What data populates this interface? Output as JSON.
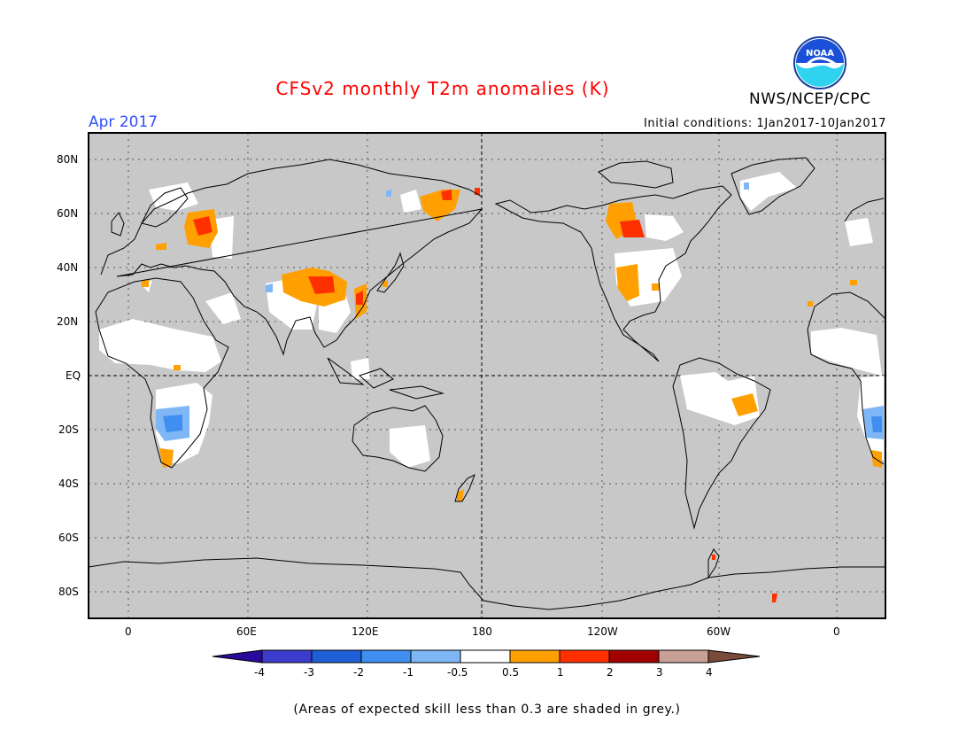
{
  "header": {
    "title": "CFSv2 monthly T2m anomalies (K)",
    "agency": "NWS/NCEP/CPC",
    "logo_text": "NOAA",
    "month": "Apr 2017",
    "initial_conditions": "Initial conditions: 1Jan2017-10Jan2017"
  },
  "map": {
    "lat_labels": [
      "80N",
      "60N",
      "40N",
      "20N",
      "EQ",
      "20S",
      "40S",
      "60S",
      "80S"
    ],
    "lon_labels": [
      "0",
      "60E",
      "120E",
      "180",
      "120W",
      "60W",
      "0"
    ],
    "colors": {
      "land_skill": "#c8c8c8",
      "background": "#c8c8c8",
      "coast": "#000000"
    }
  },
  "colorbar": {
    "labels": [
      "-4",
      "-3",
      "-2",
      "-1",
      "-0.5",
      "0.5",
      "1",
      "2",
      "3",
      "4"
    ],
    "colors": [
      "#2a0a9c",
      "#3c3ccc",
      "#1f5fd6",
      "#3f8ef0",
      "#7fb6f5",
      "#ffffff",
      "#ffa000",
      "#ff3000",
      "#a00000",
      "#c8a096",
      "#7a4a3a"
    ]
  },
  "footer": {
    "note": "(Areas of expected skill less than 0.3 are shaded in grey.)"
  }
}
